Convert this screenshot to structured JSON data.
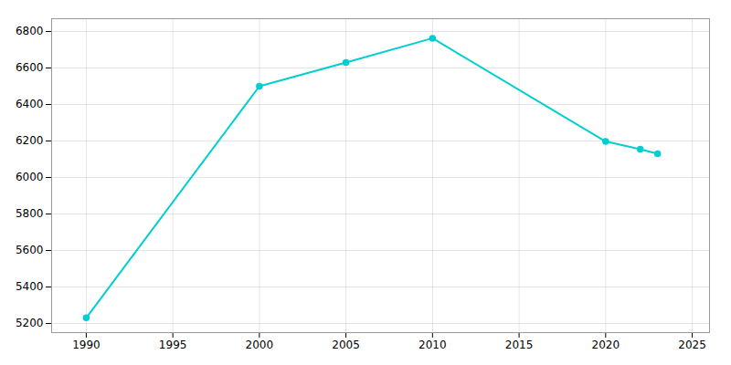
{
  "chart_data": {
    "type": "line",
    "x": [
      1990,
      2000,
      2005,
      2010,
      2020,
      2022,
      2023
    ],
    "values": [
      5231,
      6500,
      6630,
      6763,
      6197,
      6155,
      6130
    ],
    "color": "#00CED1",
    "marker": "circle",
    "xlim": [
      1988,
      2026
    ],
    "ylim": [
      5150,
      6870
    ],
    "xticks": [
      1990,
      1995,
      2000,
      2005,
      2010,
      2015,
      2020,
      2025
    ],
    "yticks": [
      5200,
      5400,
      5600,
      5800,
      6000,
      6200,
      6400,
      6600,
      6800
    ],
    "grid": true
  }
}
